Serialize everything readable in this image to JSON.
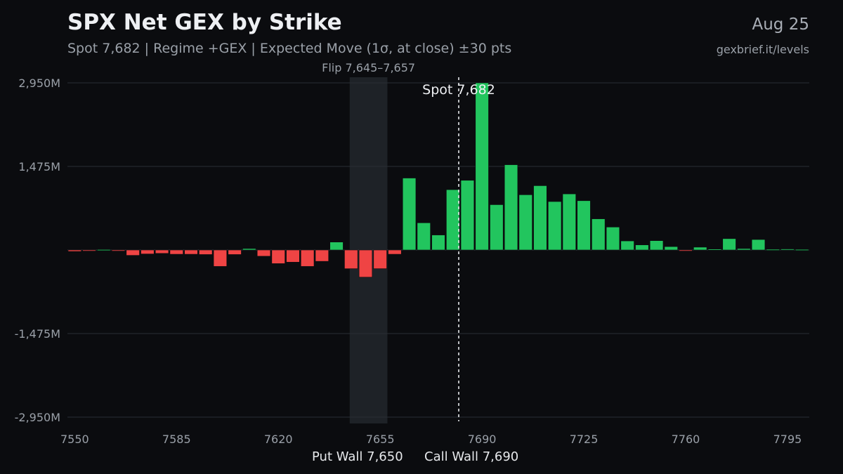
{
  "header": {
    "title": "SPX Net GEX by Strike",
    "subtitle": "Spot 7,682 | Regime +GEX | Expected Move (1σ, at close) ±30 pts",
    "date": "Aug 25",
    "source": "gexbrief.it/levels"
  },
  "annotations": {
    "flip_label": "Flip 7,645–7,657",
    "spot_label": "Spot 7,682",
    "put_wall_label": "Put Wall 7,650",
    "call_wall_label": "Call Wall 7,690"
  },
  "colors": {
    "positive": "#22c55e",
    "negative": "#ef4444",
    "background": "#0b0c0f",
    "grid": "#2a2e35",
    "flip_band": "#1e2227"
  },
  "chart_data": {
    "type": "bar",
    "title": "SPX Net GEX by Strike",
    "xlabel": "",
    "ylabel": "",
    "x": [
      7550,
      7555,
      7560,
      7565,
      7570,
      7575,
      7580,
      7585,
      7590,
      7595,
      7600,
      7605,
      7610,
      7615,
      7620,
      7625,
      7630,
      7635,
      7640,
      7645,
      7650,
      7655,
      7660,
      7665,
      7670,
      7675,
      7680,
      7685,
      7690,
      7695,
      7700,
      7705,
      7710,
      7715,
      7720,
      7725,
      7730,
      7735,
      7740,
      7745,
      7750,
      7755,
      7760,
      7765,
      7770,
      7775,
      7780,
      7785,
      7790,
      7795,
      7800
    ],
    "values": [
      -25,
      -15,
      8,
      -10,
      -95,
      -70,
      -60,
      -75,
      -75,
      -80,
      -290,
      -80,
      25,
      -110,
      -240,
      -215,
      -290,
      -200,
      140,
      -330,
      -480,
      -330,
      -75,
      1270,
      480,
      265,
      1065,
      1230,
      2950,
      800,
      1505,
      975,
      1135,
      855,
      990,
      870,
      550,
      405,
      160,
      90,
      165,
      60,
      -15,
      50,
      15,
      200,
      25,
      185,
      12,
      18,
      10
    ],
    "xticks": [
      7550,
      7585,
      7620,
      7655,
      7690,
      7725,
      7760,
      7795
    ],
    "xtick_labels": [
      "7550",
      "7585",
      "7620",
      "7655",
      "7690",
      "7725",
      "7760",
      "7795"
    ],
    "yticks": [
      2950,
      1475,
      -1475,
      -2950
    ],
    "ytick_labels": [
      "2,950M",
      "1,475M",
      "-1,475M",
      "-2,950M"
    ],
    "ylim": [
      -2950,
      2950
    ],
    "xlim": [
      7547.5,
      7802.5
    ],
    "grid": true,
    "flip_zone": [
      7645,
      7657
    ],
    "spot": 7682,
    "put_wall": 7650,
    "call_wall": 7690
  }
}
